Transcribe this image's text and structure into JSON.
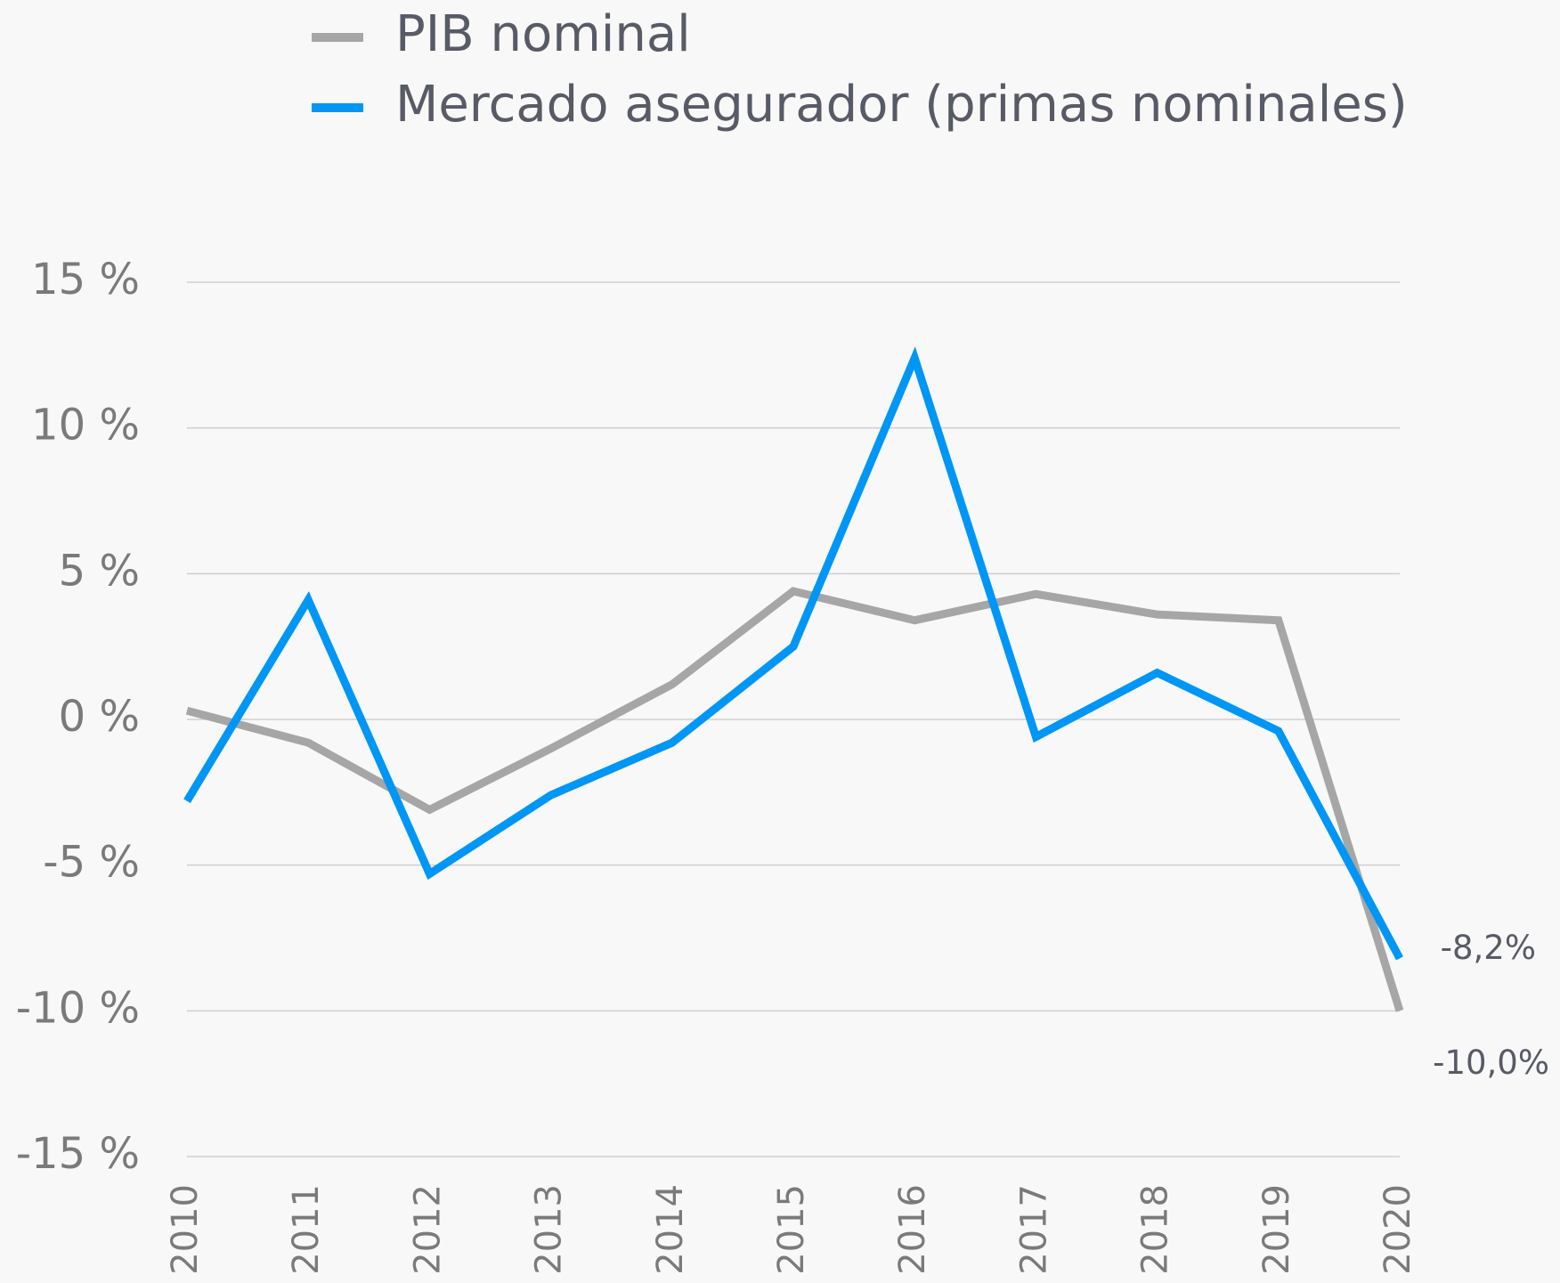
{
  "chart_data": {
    "type": "line",
    "categories": [
      "2010",
      "2011",
      "2012",
      "2013",
      "2014",
      "2015",
      "2016",
      "2017",
      "2018",
      "2019",
      "2020"
    ],
    "series": [
      {
        "name": "PIB nominal",
        "color": "#a6a6a6",
        "values": [
          0.3,
          -0.8,
          -3.1,
          -1.0,
          1.2,
          4.4,
          3.4,
          4.3,
          3.6,
          3.4,
          -10.0
        ],
        "value_labels": [
          null,
          null,
          null,
          null,
          null,
          null,
          null,
          null,
          null,
          null,
          "-10,0%"
        ]
      },
      {
        "name": "Mercado asegurador (primas nominales)",
        "color": "#0096f5",
        "values": [
          -2.8,
          4.1,
          -5.3,
          -2.6,
          -0.8,
          2.5,
          12.4,
          -0.6,
          1.6,
          -0.4,
          -8.2
        ],
        "value_labels": [
          null,
          null,
          null,
          null,
          null,
          null,
          null,
          null,
          null,
          null,
          "-8,2%"
        ]
      }
    ],
    "ylim": [
      -15,
      15
    ],
    "yticks": [
      {
        "value": -15,
        "label": "-15 %"
      },
      {
        "value": -10,
        "label": "-10 %"
      },
      {
        "value": -5,
        "label": "-5 %"
      },
      {
        "value": 0,
        "label": "0 %"
      },
      {
        "value": 5,
        "label": "5 %"
      },
      {
        "value": 10,
        "label": "10 %"
      },
      {
        "value": 15,
        "label": "15 %"
      }
    ],
    "grid": true,
    "legend": "top"
  }
}
